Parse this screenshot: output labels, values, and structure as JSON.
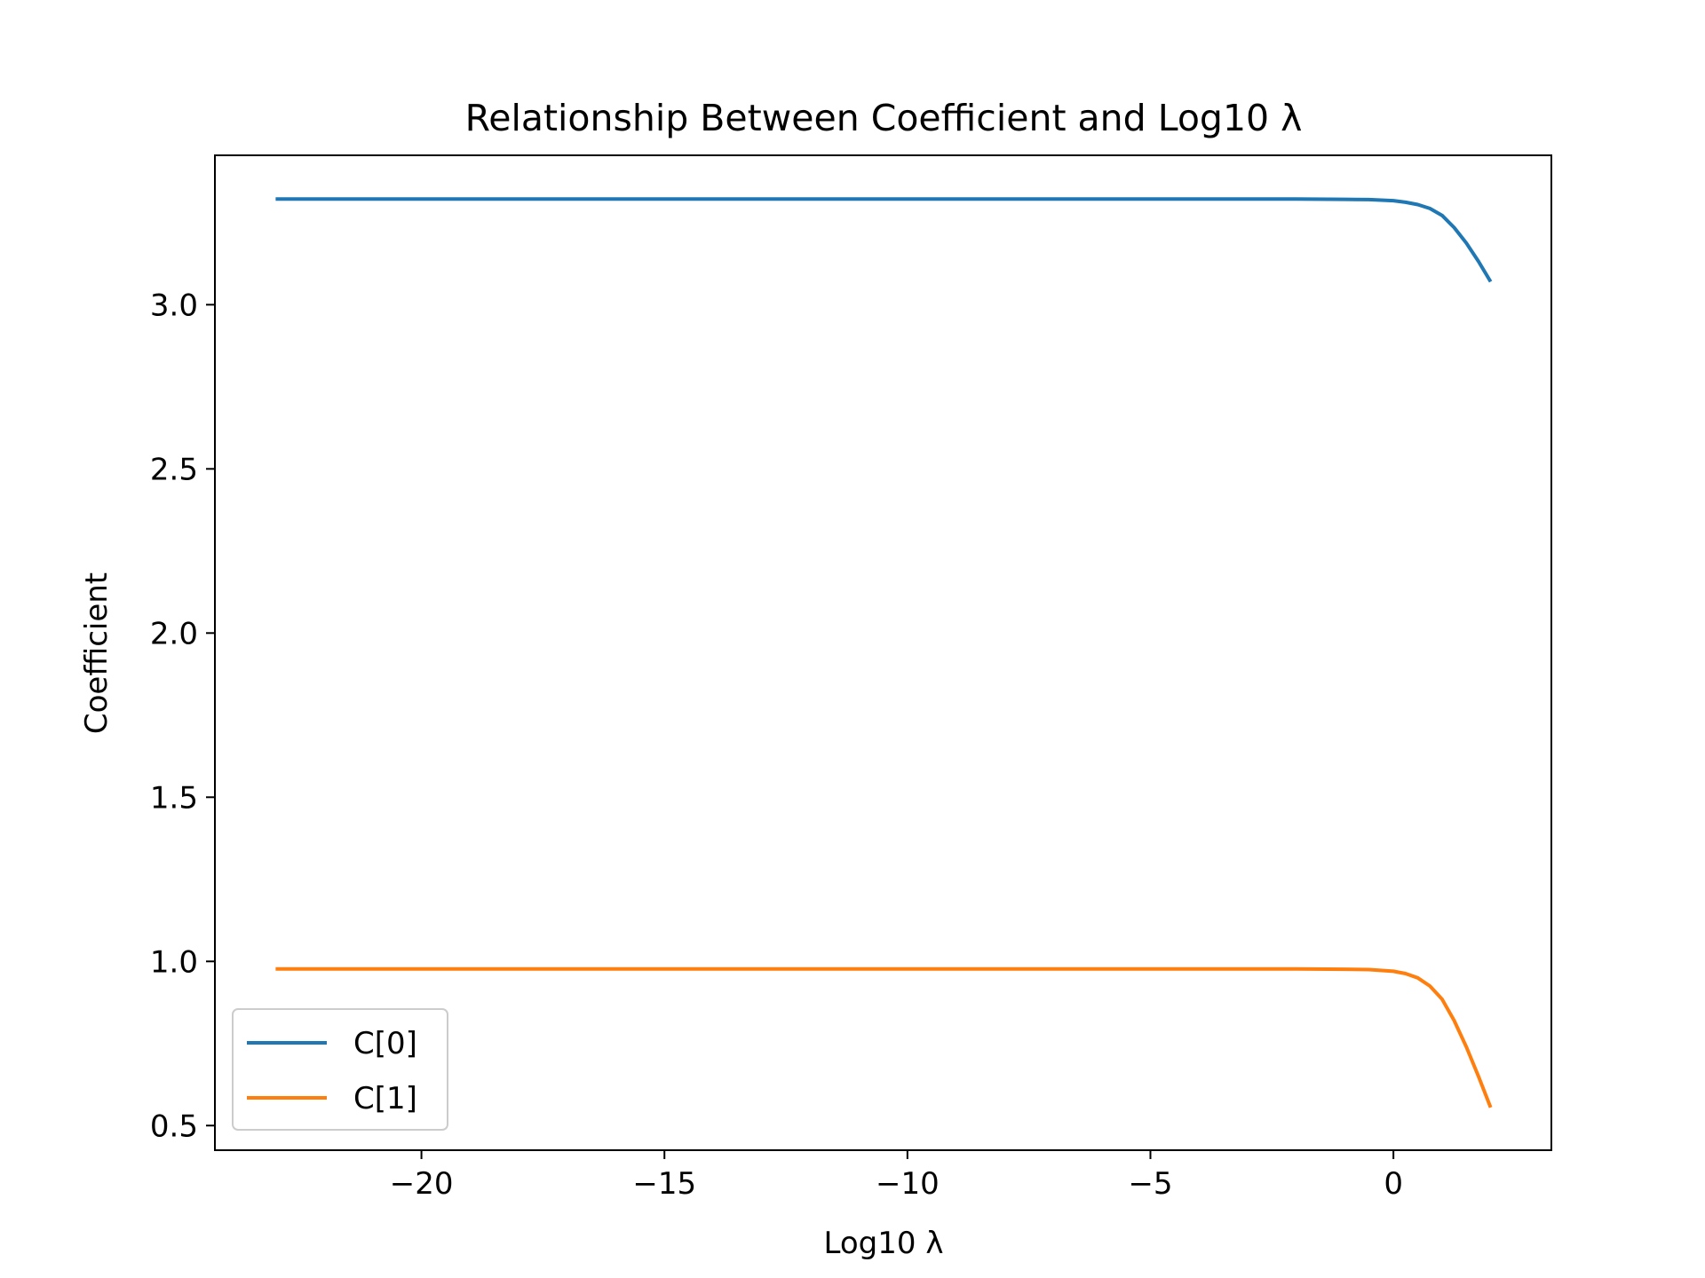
{
  "chart_data": {
    "type": "line",
    "title": "Relationship Between Coefficient and Log10 λ",
    "xlabel": "Log10 λ",
    "ylabel": "Coefficient",
    "xlim": [
      -24.25,
      3.25
    ],
    "ylim": [
      0.425,
      3.455
    ],
    "xticks": [
      -20,
      -15,
      -10,
      -5,
      0
    ],
    "xtick_labels": [
      "−20",
      "−15",
      "−10",
      "−5",
      "0"
    ],
    "yticks": [
      0.5,
      1.0,
      1.5,
      2.0,
      2.5,
      3.0
    ],
    "ytick_labels": [
      "0.5",
      "1.0",
      "1.5",
      "2.0",
      "2.5",
      "3.0"
    ],
    "grid": false,
    "legend_position": "lower-left",
    "x": [
      -23,
      -20,
      -15,
      -10,
      -5,
      -3,
      -2,
      -1,
      -0.5,
      0,
      0.25,
      0.5,
      0.75,
      1.0,
      1.25,
      1.5,
      1.75,
      2.0
    ],
    "series": [
      {
        "name": "C[0]",
        "color": "#1f77b4",
        "values": [
          3.322,
          3.322,
          3.322,
          3.322,
          3.322,
          3.322,
          3.322,
          3.321,
          3.32,
          3.317,
          3.312,
          3.305,
          3.293,
          3.272,
          3.235,
          3.188,
          3.132,
          3.07
        ]
      },
      {
        "name": "C[1]",
        "color": "#ff7f0e",
        "values": [
          0.977,
          0.977,
          0.977,
          0.977,
          0.977,
          0.977,
          0.977,
          0.976,
          0.975,
          0.97,
          0.963,
          0.95,
          0.925,
          0.885,
          0.82,
          0.74,
          0.65,
          0.555
        ]
      }
    ]
  }
}
